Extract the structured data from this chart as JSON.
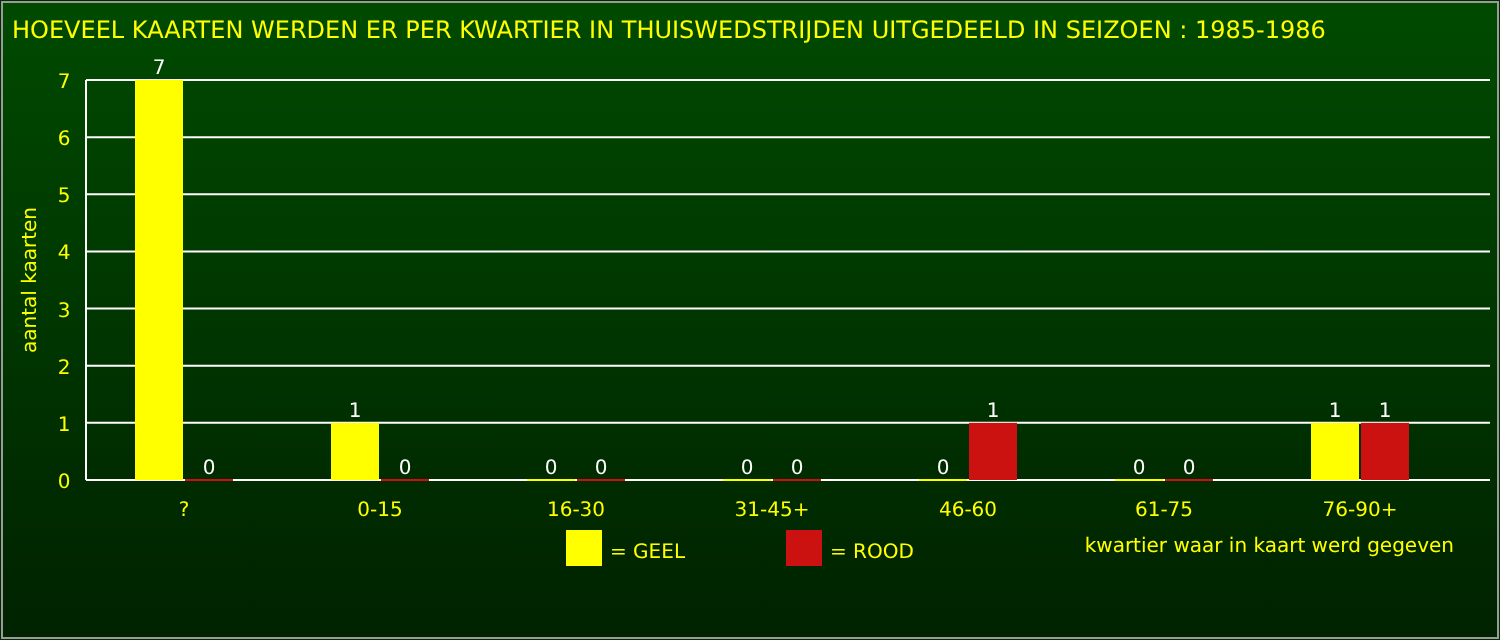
{
  "chart_data": {
    "type": "bar",
    "title": "HOEVEEL KAARTEN WERDEN ER PER KWARTIER IN THUISWEDSTRIJDEN UITGEDEELD IN SEIZOEN : 1985-1986",
    "xlabel": "kwartier waar in kaart werd gegeven",
    "ylabel": "aantal kaarten",
    "categories": [
      "?",
      "0-15",
      "16-30",
      "31-45+",
      "46-60",
      "61-75",
      "76-90+"
    ],
    "series": [
      {
        "name": "= GEEL",
        "color": "#ffff00",
        "values": [
          7,
          1,
          0,
          0,
          0,
          0,
          1
        ]
      },
      {
        "name": "= ROOD",
        "color": "#cc1111",
        "values": [
          0,
          0,
          0,
          0,
          1,
          0,
          1
        ]
      }
    ],
    "ylim": [
      0,
      7
    ],
    "yticks": [
      0,
      1,
      2,
      3,
      4,
      5,
      6,
      7
    ],
    "grid": "y",
    "legend": "bottom",
    "data_labels": true
  }
}
